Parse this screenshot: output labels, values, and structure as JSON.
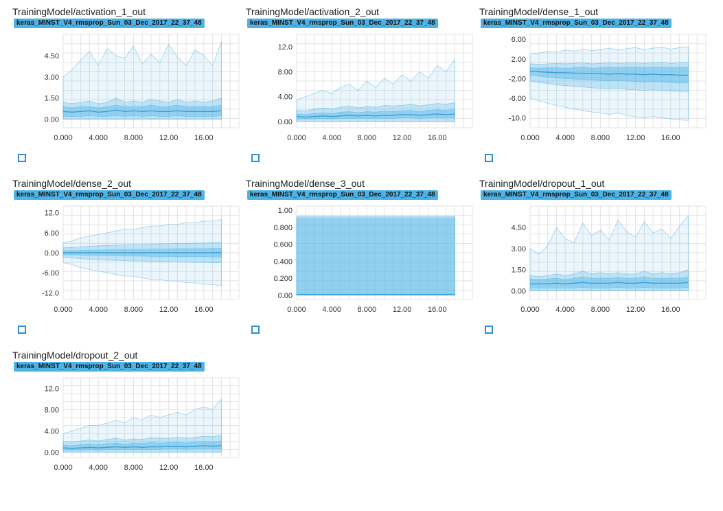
{
  "run_name": "keras_MINST_V4_rmsprop_Sun_03_Dec_2017_22_37_48",
  "colors": {
    "badge": "#4db3e6",
    "band": "#5ab7e8",
    "expand_icon": "#2a8fd6",
    "grid": "#e3e3e3"
  },
  "icons": {
    "expand": "fullscreen-expand-icon"
  },
  "x_ticks": [
    "0.000",
    "4.000",
    "8.000",
    "12.00",
    "16.00"
  ],
  "chart_data": [
    {
      "type": "area",
      "title": "TrainingModel/activation_1_out",
      "x": [
        0,
        1,
        2,
        3,
        4,
        5,
        6,
        7,
        8,
        9,
        10,
        11,
        12,
        13,
        14,
        15,
        16,
        17,
        18
      ],
      "ylim": [
        -0.6,
        6.0
      ],
      "ytick_values": [
        0,
        1.5,
        3.0,
        4.5
      ],
      "ytick_labels": [
        "0.00",
        "1.50",
        "3.00",
        "4.50"
      ],
      "max": [
        3.0,
        3.5,
        4.2,
        4.8,
        3.8,
        5.0,
        4.5,
        4.3,
        5.2,
        3.9,
        4.6,
        4.0,
        5.3,
        4.4,
        3.8,
        4.9,
        4.5,
        3.8,
        5.5
      ],
      "p93": [
        1.2,
        1.1,
        1.2,
        1.3,
        1.1,
        1.2,
        1.5,
        1.2,
        1.3,
        1.2,
        1.4,
        1.3,
        1.2,
        1.4,
        1.2,
        1.3,
        1.2,
        1.3,
        1.5
      ],
      "p69": [
        0.9,
        0.8,
        0.9,
        0.9,
        0.8,
        0.9,
        1.0,
        0.9,
        0.9,
        0.9,
        1.0,
        0.9,
        0.9,
        1.0,
        0.9,
        0.9,
        0.9,
        0.9,
        1.0
      ],
      "p50": [
        0.55,
        0.5,
        0.55,
        0.6,
        0.5,
        0.55,
        0.65,
        0.55,
        0.6,
        0.55,
        0.6,
        0.55,
        0.55,
        0.6,
        0.55,
        0.55,
        0.55,
        0.55,
        0.6
      ],
      "p31": [
        0.2,
        0.2,
        0.2,
        0.25,
        0.2,
        0.2,
        0.25,
        0.2,
        0.25,
        0.2,
        0.25,
        0.2,
        0.2,
        0.25,
        0.2,
        0.2,
        0.2,
        0.2,
        0.25
      ],
      "p7": [
        0,
        0,
        0,
        0,
        0,
        0,
        0,
        0,
        0,
        0,
        0,
        0,
        0,
        0,
        0,
        0,
        0,
        0,
        0
      ],
      "min": [
        0,
        0,
        0,
        0,
        0,
        0,
        0,
        0,
        0,
        0,
        0,
        0,
        0,
        0,
        0,
        0,
        0,
        0,
        0
      ]
    },
    {
      "type": "area",
      "title": "TrainingModel/activation_2_out",
      "x": [
        0,
        1,
        2,
        3,
        4,
        5,
        6,
        7,
        8,
        9,
        10,
        11,
        12,
        13,
        14,
        15,
        16,
        17,
        18
      ],
      "ylim": [
        -1.0,
        14.0
      ],
      "ytick_values": [
        0,
        4,
        8,
        12
      ],
      "ytick_labels": [
        "0.00",
        "4.00",
        "8.00",
        "12.0"
      ],
      "max": [
        3.5,
        4.0,
        4.5,
        5.0,
        4.5,
        5.5,
        6.0,
        5.0,
        6.5,
        5.5,
        7.0,
        6.0,
        7.5,
        6.5,
        8.0,
        7.0,
        9.0,
        8.0,
        10.0
      ],
      "p93": [
        1.8,
        1.7,
        2.0,
        2.2,
        2.0,
        2.3,
        2.5,
        2.2,
        2.4,
        2.3,
        2.6,
        2.5,
        2.6,
        2.8,
        2.5,
        2.7,
        2.9,
        2.8,
        3.0
      ],
      "p69": [
        1.2,
        1.1,
        1.3,
        1.4,
        1.3,
        1.5,
        1.6,
        1.4,
        1.6,
        1.5,
        1.7,
        1.6,
        1.7,
        1.8,
        1.6,
        1.8,
        1.9,
        1.8,
        2.0
      ],
      "p50": [
        0.8,
        0.7,
        0.8,
        0.9,
        0.8,
        0.9,
        1.0,
        0.9,
        1.0,
        0.9,
        1.0,
        1.0,
        1.1,
        1.1,
        1.0,
        1.1,
        1.2,
        1.1,
        1.2
      ],
      "p31": [
        0.4,
        0.4,
        0.4,
        0.5,
        0.4,
        0.5,
        0.5,
        0.5,
        0.5,
        0.5,
        0.5,
        0.5,
        0.6,
        0.6,
        0.5,
        0.6,
        0.6,
        0.6,
        0.6
      ],
      "p7": [
        0,
        0,
        0,
        0,
        0,
        0,
        0,
        0,
        0,
        0,
        0,
        0,
        0,
        0,
        0,
        0,
        0,
        0,
        0
      ],
      "min": [
        0,
        0,
        0,
        0,
        0,
        0,
        0,
        0,
        0,
        0,
        0,
        0,
        0,
        0,
        0,
        0,
        0,
        0,
        0
      ]
    },
    {
      "type": "area",
      "title": "TrainingModel/dense_1_out",
      "x": [
        0,
        1,
        2,
        3,
        4,
        5,
        6,
        7,
        8,
        9,
        10,
        11,
        12,
        13,
        14,
        15,
        16,
        17,
        18
      ],
      "ylim": [
        -12.0,
        7.0
      ],
      "ytick_values": [
        -10,
        -6,
        -2,
        2,
        6
      ],
      "ytick_labels": [
        "-10.0",
        "-6.00",
        "-2.00",
        "2.00",
        "6.00"
      ],
      "max": [
        3.0,
        3.2,
        3.5,
        3.4,
        3.8,
        3.6,
        4.0,
        3.7,
        3.9,
        4.2,
        3.8,
        4.1,
        4.3,
        3.9,
        4.2,
        4.4,
        4.0,
        4.3,
        4.5
      ],
      "p93": [
        1.0,
        0.9,
        1.0,
        1.1,
        1.0,
        1.1,
        1.2,
        1.0,
        1.1,
        1.2,
        1.1,
        1.2,
        1.2,
        1.1,
        1.2,
        1.3,
        1.1,
        1.2,
        1.3
      ],
      "p69": [
        0.2,
        0.1,
        0.2,
        0.2,
        0.1,
        0.2,
        0.3,
        0.1,
        0.2,
        0.3,
        0.2,
        0.3,
        0.3,
        0.2,
        0.3,
        0.3,
        0.2,
        0.3,
        0.3
      ],
      "p50": [
        -0.5,
        -0.6,
        -0.7,
        -0.8,
        -0.8,
        -0.9,
        -0.9,
        -1.0,
        -1.0,
        -1.1,
        -1.0,
        -1.1,
        -1.1,
        -1.2,
        -1.1,
        -1.2,
        -1.2,
        -1.3,
        -1.3
      ],
      "p31": [
        -1.3,
        -1.5,
        -1.7,
        -1.9,
        -2.0,
        -2.1,
        -2.2,
        -2.3,
        -2.4,
        -2.5,
        -2.4,
        -2.5,
        -2.6,
        -2.7,
        -2.6,
        -2.7,
        -2.8,
        -2.9,
        -2.9
      ],
      "p7": [
        -2.5,
        -2.8,
        -3.0,
        -3.3,
        -3.4,
        -3.6,
        -3.7,
        -3.9,
        -4.0,
        -4.1,
        -4.0,
        -4.2,
        -4.3,
        -4.4,
        -4.3,
        -4.4,
        -4.5,
        -4.6,
        -4.6
      ],
      "min": [
        -6.0,
        -6.5,
        -7.0,
        -7.5,
        -7.8,
        -8.2,
        -8.5,
        -8.8,
        -9.0,
        -9.3,
        -9.0,
        -9.5,
        -9.8,
        -10.0,
        -9.7,
        -10.0,
        -10.2,
        -10.4,
        -10.5
      ]
    },
    {
      "type": "area",
      "title": "TrainingModel/dense_2_out",
      "x": [
        0,
        1,
        2,
        3,
        4,
        5,
        6,
        7,
        8,
        9,
        10,
        11,
        12,
        13,
        14,
        15,
        16,
        17,
        18
      ],
      "ylim": [
        -14.0,
        14.0
      ],
      "ytick_values": [
        -12,
        -6,
        0,
        6,
        12
      ],
      "ytick_labels": [
        "-12.0",
        "-6.00",
        "0.00",
        "6.00",
        "12.0"
      ],
      "max": [
        3.0,
        3.5,
        4.5,
        5.0,
        5.5,
        6.0,
        6.5,
        7.0,
        7.0,
        7.5,
        8.0,
        8.0,
        8.5,
        8.5,
        9.0,
        9.0,
        9.5,
        9.5,
        10.0
      ],
      "p93": [
        1.5,
        1.6,
        1.8,
        2.0,
        2.1,
        2.2,
        2.3,
        2.4,
        2.5,
        2.5,
        2.6,
        2.7,
        2.7,
        2.8,
        2.8,
        2.9,
        2.9,
        3.0,
        3.0
      ],
      "p69": [
        0.6,
        0.6,
        0.7,
        0.8,
        0.8,
        0.9,
        0.9,
        1.0,
        1.0,
        1.0,
        1.1,
        1.1,
        1.1,
        1.2,
        1.2,
        1.2,
        1.2,
        1.3,
        1.3
      ],
      "p50": [
        0,
        0,
        0,
        0,
        0,
        0,
        0,
        0,
        0,
        0,
        0,
        0,
        0,
        0,
        0,
        0,
        0,
        0,
        0
      ],
      "p31": [
        -0.6,
        -0.6,
        -0.7,
        -0.8,
        -0.8,
        -0.9,
        -0.9,
        -1.0,
        -1.0,
        -1.0,
        -1.1,
        -1.1,
        -1.1,
        -1.2,
        -1.2,
        -1.2,
        -1.2,
        -1.3,
        -1.3
      ],
      "p7": [
        -1.5,
        -1.6,
        -1.8,
        -2.0,
        -2.1,
        -2.2,
        -2.3,
        -2.4,
        -2.5,
        -2.5,
        -2.6,
        -2.7,
        -2.7,
        -2.8,
        -2.8,
        -2.9,
        -2.9,
        -3.0,
        -3.0
      ],
      "min": [
        -3.0,
        -3.5,
        -4.5,
        -5.0,
        -5.5,
        -6.0,
        -6.5,
        -7.0,
        -7.0,
        -7.5,
        -8.0,
        -8.0,
        -8.5,
        -8.5,
        -9.0,
        -9.0,
        -9.5,
        -9.5,
        -10.0
      ]
    },
    {
      "type": "area",
      "title": "TrainingModel/dense_3_out",
      "x": [
        0,
        1,
        2,
        3,
        4,
        5,
        6,
        7,
        8,
        9,
        10,
        11,
        12,
        13,
        14,
        15,
        16,
        17,
        18
      ],
      "ylim": [
        -0.05,
        1.05
      ],
      "ytick_values": [
        0,
        0.2,
        0.4,
        0.6,
        0.8,
        1.0
      ],
      "ytick_labels": [
        "0.00",
        "0.200",
        "0.400",
        "0.600",
        "0.800",
        "1.00"
      ],
      "max": [
        0.93,
        0.93,
        0.93,
        0.93,
        0.93,
        0.93,
        0.93,
        0.93,
        0.93,
        0.93,
        0.93,
        0.93,
        0.93,
        0.93,
        0.93,
        0.93,
        0.93,
        0.93,
        0.93
      ],
      "p93": [
        0.92,
        0.92,
        0.92,
        0.92,
        0.92,
        0.92,
        0.92,
        0.92,
        0.92,
        0.92,
        0.92,
        0.92,
        0.92,
        0.92,
        0.92,
        0.92,
        0.92,
        0.92,
        0.92
      ],
      "p69": [
        0.9,
        0.9,
        0.9,
        0.9,
        0.9,
        0.9,
        0.9,
        0.9,
        0.9,
        0.9,
        0.9,
        0.9,
        0.9,
        0.9,
        0.9,
        0.9,
        0.9,
        0.9,
        0.9
      ],
      "p50": [
        0.01,
        0.01,
        0.01,
        0.01,
        0.01,
        0.01,
        0.01,
        0.01,
        0.01,
        0.01,
        0.01,
        0.01,
        0.01,
        0.01,
        0.01,
        0.01,
        0.01,
        0.01,
        0.01
      ],
      "p31": [
        0.005,
        0.005,
        0.005,
        0.005,
        0.005,
        0.005,
        0.005,
        0.005,
        0.005,
        0.005,
        0.005,
        0.005,
        0.005,
        0.005,
        0.005,
        0.005,
        0.005,
        0.005,
        0.005
      ],
      "p7": [
        0,
        0,
        0,
        0,
        0,
        0,
        0,
        0,
        0,
        0,
        0,
        0,
        0,
        0,
        0,
        0,
        0,
        0,
        0
      ],
      "min": [
        0,
        0,
        0,
        0,
        0,
        0,
        0,
        0,
        0,
        0,
        0,
        0,
        0,
        0,
        0,
        0,
        0,
        0,
        0
      ]
    },
    {
      "type": "area",
      "title": "TrainingModel/dropout_1_out",
      "x": [
        0,
        1,
        2,
        3,
        4,
        5,
        6,
        7,
        8,
        9,
        10,
        11,
        12,
        13,
        14,
        15,
        16,
        17,
        18
      ],
      "ylim": [
        -0.6,
        6.0
      ],
      "ytick_values": [
        0,
        1.5,
        3.0,
        4.5
      ],
      "ytick_labels": [
        "0.00",
        "1.50",
        "3.00",
        "4.50"
      ],
      "max": [
        3.0,
        2.6,
        3.2,
        4.5,
        3.7,
        3.4,
        4.8,
        3.9,
        4.3,
        3.6,
        5.0,
        4.2,
        3.8,
        4.9,
        4.1,
        4.4,
        3.7,
        4.6,
        5.3
      ],
      "p93": [
        1.1,
        1.0,
        1.1,
        1.2,
        1.1,
        1.2,
        1.4,
        1.2,
        1.3,
        1.2,
        1.3,
        1.2,
        1.2,
        1.4,
        1.2,
        1.3,
        1.2,
        1.3,
        1.5
      ],
      "p69": [
        0.85,
        0.8,
        0.85,
        0.9,
        0.8,
        0.9,
        1.0,
        0.9,
        0.9,
        0.9,
        0.95,
        0.9,
        0.9,
        1.0,
        0.9,
        0.9,
        0.9,
        0.9,
        1.0
      ],
      "p50": [
        0.5,
        0.5,
        0.5,
        0.55,
        0.5,
        0.55,
        0.6,
        0.55,
        0.55,
        0.55,
        0.6,
        0.55,
        0.55,
        0.6,
        0.55,
        0.55,
        0.55,
        0.55,
        0.6
      ],
      "p31": [
        0.2,
        0.2,
        0.2,
        0.2,
        0.2,
        0.2,
        0.25,
        0.2,
        0.2,
        0.2,
        0.25,
        0.2,
        0.2,
        0.25,
        0.2,
        0.2,
        0.2,
        0.2,
        0.25
      ],
      "p7": [
        0,
        0,
        0,
        0,
        0,
        0,
        0,
        0,
        0,
        0,
        0,
        0,
        0,
        0,
        0,
        0,
        0,
        0,
        0
      ],
      "min": [
        0,
        0,
        0,
        0,
        0,
        0,
        0,
        0,
        0,
        0,
        0,
        0,
        0,
        0,
        0,
        0,
        0,
        0,
        0
      ]
    },
    {
      "type": "area",
      "title": "TrainingModel/dropout_2_out",
      "x": [
        0,
        1,
        2,
        3,
        4,
        5,
        6,
        7,
        8,
        9,
        10,
        11,
        12,
        13,
        14,
        15,
        16,
        17,
        18
      ],
      "ylim": [
        -1.0,
        14.0
      ],
      "ytick_values": [
        0,
        4,
        8,
        12
      ],
      "ytick_labels": [
        "0.00",
        "4.00",
        "8.00",
        "12.0"
      ],
      "max": [
        3.5,
        4.0,
        4.5,
        5.0,
        5.0,
        5.5,
        6.0,
        5.5,
        6.5,
        6.0,
        7.0,
        6.5,
        7.0,
        7.5,
        7.0,
        8.0,
        8.5,
        8.0,
        10.0
      ],
      "p93": [
        2.0,
        1.9,
        2.1,
        2.3,
        2.1,
        2.4,
        2.6,
        2.3,
        2.5,
        2.4,
        2.7,
        2.6,
        2.6,
        2.8,
        2.6,
        2.8,
        3.0,
        2.9,
        3.2
      ],
      "p69": [
        1.3,
        1.2,
        1.4,
        1.5,
        1.4,
        1.6,
        1.7,
        1.5,
        1.7,
        1.6,
        1.8,
        1.7,
        1.8,
        1.9,
        1.7,
        1.9,
        2.0,
        1.9,
        2.1
      ],
      "p50": [
        0.8,
        0.7,
        0.8,
        0.9,
        0.8,
        0.9,
        1.0,
        0.9,
        1.0,
        0.9,
        1.0,
        1.0,
        1.1,
        1.1,
        1.0,
        1.1,
        1.2,
        1.1,
        1.2
      ],
      "p31": [
        0.4,
        0.4,
        0.4,
        0.5,
        0.4,
        0.5,
        0.5,
        0.5,
        0.5,
        0.5,
        0.5,
        0.5,
        0.6,
        0.6,
        0.5,
        0.6,
        0.6,
        0.6,
        0.6
      ],
      "p7": [
        0,
        0,
        0,
        0,
        0,
        0,
        0,
        0,
        0,
        0,
        0,
        0,
        0,
        0,
        0,
        0,
        0,
        0,
        0
      ],
      "min": [
        0,
        0,
        0,
        0,
        0,
        0,
        0,
        0,
        0,
        0,
        0,
        0,
        0,
        0,
        0,
        0,
        0,
        0,
        0
      ]
    }
  ]
}
